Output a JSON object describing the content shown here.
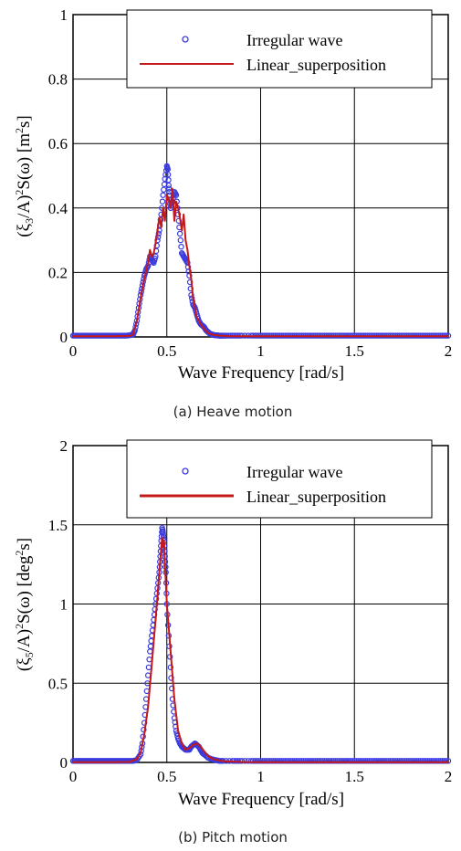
{
  "colors": {
    "irregular": "#3a3adf",
    "linear": "#c41a1a",
    "grid": "#000000"
  },
  "chart_data": [
    {
      "type": "line",
      "caption": "(a)  Heave motion",
      "xlabel": "Wave Frequency [rad/s]",
      "ylabel": "(ξ3/A)2S(ω) [m2s]",
      "ylabel_parts": {
        "pre": "(ξ",
        "sub": "3",
        "mid": "/A)",
        "sup": "2",
        "post": "S(ω) [m",
        "sup2": "2",
        "tail": "s]"
      },
      "xlim": [
        0,
        2
      ],
      "ylim": [
        0,
        1
      ],
      "xticks": [
        0,
        0.5,
        1,
        1.5,
        2
      ],
      "xtick_labels": [
        "0",
        "0.5",
        "1",
        "1.5",
        "2"
      ],
      "yticks": [
        0,
        0.2,
        0.4,
        0.6,
        0.8,
        1
      ],
      "ytick_labels": [
        "0",
        "0.2",
        "0.4",
        "0.6",
        "0.8",
        "1"
      ],
      "grid": true,
      "legend_position": "top-right",
      "series": [
        {
          "name": "Irregular wave",
          "style": "markers",
          "x": [
            0,
            0.02,
            0.04,
            0.06,
            0.08,
            0.1,
            0.12,
            0.14,
            0.16,
            0.18,
            0.2,
            0.22,
            0.24,
            0.26,
            0.28,
            0.3,
            0.32,
            0.33,
            0.34,
            0.35,
            0.36,
            0.37,
            0.38,
            0.39,
            0.4,
            0.41,
            0.42,
            0.43,
            0.44,
            0.45,
            0.46,
            0.47,
            0.48,
            0.49,
            0.5,
            0.505,
            0.51,
            0.515,
            0.52,
            0.53,
            0.54,
            0.55,
            0.56,
            0.57,
            0.58,
            0.59,
            0.6,
            0.61,
            0.62,
            0.63,
            0.64,
            0.65,
            0.66,
            0.67,
            0.68,
            0.69,
            0.7,
            0.71,
            0.72,
            0.73,
            0.74,
            0.75,
            0.76,
            0.77,
            0.78,
            0.79,
            0.8,
            0.82,
            0.85,
            0.9,
            0.95,
            1.0,
            1.1,
            1.2,
            1.3,
            1.4,
            1.5,
            1.6,
            1.7,
            1.8,
            1.9,
            2.0
          ],
          "y": [
            0.004,
            0.004,
            0.004,
            0.004,
            0.004,
            0.004,
            0.004,
            0.004,
            0.004,
            0.004,
            0.004,
            0.004,
            0.004,
            0.004,
            0.004,
            0.005,
            0.008,
            0.02,
            0.05,
            0.09,
            0.13,
            0.16,
            0.19,
            0.21,
            0.22,
            0.25,
            0.24,
            0.23,
            0.25,
            0.3,
            0.33,
            0.38,
            0.44,
            0.49,
            0.53,
            0.52,
            0.47,
            0.44,
            0.4,
            0.42,
            0.45,
            0.44,
            0.38,
            0.32,
            0.26,
            0.25,
            0.24,
            0.23,
            0.19,
            0.13,
            0.1,
            0.09,
            0.07,
            0.05,
            0.04,
            0.035,
            0.03,
            0.02,
            0.015,
            0.01,
            0.008,
            0.006,
            0.005,
            0.005,
            0.004,
            0.004,
            0.004,
            0.004,
            0.004,
            0.004,
            0.004,
            0.004,
            0.004,
            0.004,
            0.004,
            0.004,
            0.004,
            0.004,
            0.004,
            0.004,
            0.004,
            0.004
          ]
        },
        {
          "name": "Linear_superposition",
          "style": "line",
          "x": [
            0,
            0.1,
            0.2,
            0.3,
            0.32,
            0.34,
            0.36,
            0.38,
            0.4,
            0.41,
            0.42,
            0.43,
            0.44,
            0.45,
            0.46,
            0.47,
            0.48,
            0.49,
            0.5,
            0.51,
            0.52,
            0.53,
            0.54,
            0.55,
            0.56,
            0.57,
            0.58,
            0.59,
            0.6,
            0.61,
            0.62,
            0.63,
            0.64,
            0.65,
            0.66,
            0.68,
            0.7,
            0.72,
            0.75,
            0.8,
            0.85,
            0.9,
            1.0,
            1.2,
            1.5,
            1.8,
            2.0
          ],
          "y": [
            0.002,
            0.002,
            0.002,
            0.003,
            0.008,
            0.05,
            0.12,
            0.18,
            0.23,
            0.27,
            0.25,
            0.26,
            0.29,
            0.33,
            0.37,
            0.34,
            0.4,
            0.36,
            0.44,
            0.43,
            0.4,
            0.46,
            0.36,
            0.42,
            0.4,
            0.37,
            0.33,
            0.38,
            0.3,
            0.27,
            0.22,
            0.18,
            0.12,
            0.09,
            0.06,
            0.04,
            0.025,
            0.012,
            0.006,
            0.003,
            0.002,
            0.002,
            0.002,
            0.002,
            0.002,
            0.002,
            0.002
          ]
        }
      ]
    },
    {
      "type": "line",
      "caption": "(b)  Pitch motion",
      "xlabel": "Wave Frequency [rad/s]",
      "ylabel": "(ξ5/A)2S(ω) [deg2s]",
      "ylabel_parts": {
        "pre": "(ξ",
        "sub": "5",
        "mid": "/A)",
        "sup": "2",
        "post": "S(ω) [deg",
        "sup2": "2",
        "tail": "s]"
      },
      "xlim": [
        0,
        2
      ],
      "ylim": [
        0,
        2
      ],
      "xticks": [
        0,
        0.5,
        1,
        1.5,
        2
      ],
      "xtick_labels": [
        "0",
        "0.5",
        "1",
        "1.5",
        "2"
      ],
      "yticks": [
        0,
        0.5,
        1,
        1.5,
        2
      ],
      "ytick_labels": [
        "0",
        "0.5",
        "1",
        "1.5",
        "2"
      ],
      "grid": true,
      "legend_position": "top-right",
      "series": [
        {
          "name": "Irregular wave",
          "style": "markers",
          "x": [
            0,
            0.02,
            0.04,
            0.06,
            0.08,
            0.1,
            0.12,
            0.14,
            0.16,
            0.18,
            0.2,
            0.22,
            0.24,
            0.26,
            0.28,
            0.3,
            0.32,
            0.34,
            0.36,
            0.37,
            0.38,
            0.39,
            0.4,
            0.41,
            0.42,
            0.43,
            0.44,
            0.45,
            0.46,
            0.465,
            0.47,
            0.475,
            0.48,
            0.485,
            0.49,
            0.495,
            0.5,
            0.51,
            0.52,
            0.53,
            0.54,
            0.55,
            0.56,
            0.57,
            0.58,
            0.59,
            0.6,
            0.61,
            0.62,
            0.63,
            0.64,
            0.65,
            0.66,
            0.67,
            0.68,
            0.69,
            0.7,
            0.72,
            0.74,
            0.76,
            0.78,
            0.8,
            0.85,
            0.9,
            0.95,
            1.0,
            1.1,
            1.2,
            1.3,
            1.4,
            1.5,
            1.6,
            1.7,
            1.8,
            1.9,
            2.0
          ],
          "y": [
            0.01,
            0.01,
            0.01,
            0.01,
            0.01,
            0.01,
            0.01,
            0.01,
            0.01,
            0.01,
            0.01,
            0.01,
            0.01,
            0.01,
            0.01,
            0.01,
            0.01,
            0.015,
            0.05,
            0.12,
            0.25,
            0.4,
            0.55,
            0.7,
            0.8,
            0.9,
            1.0,
            1.1,
            1.2,
            1.3,
            1.4,
            1.48,
            1.45,
            1.4,
            1.3,
            1.2,
            1.0,
            0.8,
            0.6,
            0.4,
            0.28,
            0.2,
            0.15,
            0.12,
            0.1,
            0.09,
            0.08,
            0.08,
            0.08,
            0.1,
            0.11,
            0.12,
            0.11,
            0.1,
            0.08,
            0.06,
            0.05,
            0.03,
            0.02,
            0.015,
            0.01,
            0.01,
            0.01,
            0.01,
            0.01,
            0.01,
            0.01,
            0.01,
            0.01,
            0.01,
            0.01,
            0.01,
            0.01,
            0.01,
            0.01,
            0.01
          ]
        },
        {
          "name": "Linear_superposition",
          "style": "line",
          "x": [
            0,
            0.1,
            0.2,
            0.3,
            0.34,
            0.36,
            0.38,
            0.4,
            0.42,
            0.44,
            0.45,
            0.46,
            0.47,
            0.475,
            0.48,
            0.485,
            0.49,
            0.5,
            0.52,
            0.54,
            0.56,
            0.58,
            0.6,
            0.62,
            0.64,
            0.66,
            0.68,
            0.7,
            0.72,
            0.75,
            0.8,
            0.9,
            1.0,
            1.5,
            2.0
          ],
          "y": [
            0.002,
            0.002,
            0.002,
            0.003,
            0.02,
            0.06,
            0.18,
            0.35,
            0.62,
            0.9,
            1.05,
            1.2,
            1.35,
            1.42,
            1.36,
            1.4,
            1.25,
            1.0,
            0.7,
            0.4,
            0.2,
            0.12,
            0.08,
            0.09,
            0.11,
            0.12,
            0.1,
            0.07,
            0.04,
            0.02,
            0.008,
            0.003,
            0.002,
            0.002,
            0.002
          ]
        }
      ]
    }
  ]
}
